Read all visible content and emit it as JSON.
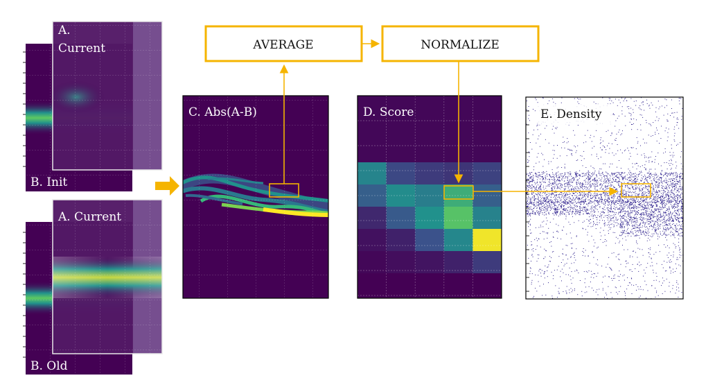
{
  "panels": {
    "a_current_top_line1": "A.",
    "a_current_top_line2": "Current",
    "b_init": "B. Init",
    "a_current_bottom": "A. Current",
    "b_old": "B. Old",
    "c_abs": "C. Abs(A-B)",
    "d_score": "D. Score",
    "e_density": "E. Density"
  },
  "process": {
    "average": "AVERAGE",
    "normalize": "NORMALIZE"
  },
  "colors": {
    "accent": "#f5b400",
    "heatmap_bg": "#440154",
    "heatmap_mid": "#21918c",
    "heatmap_high": "#fde725",
    "density_dot": "#2c1f8c"
  },
  "score_grid": {
    "rows": 8,
    "cols": 5,
    "values": [
      [
        0.02,
        0.02,
        0.02,
        0.02,
        0.02
      ],
      [
        0.02,
        0.02,
        0.02,
        0.02,
        0.02
      ],
      [
        0.02,
        0.02,
        0.02,
        0.02,
        0.02
      ],
      [
        0.45,
        0.22,
        0.18,
        0.16,
        0.2
      ],
      [
        0.3,
        0.48,
        0.42,
        0.62,
        0.3
      ],
      [
        0.12,
        0.28,
        0.5,
        0.72,
        0.44
      ],
      [
        0.05,
        0.1,
        0.25,
        0.46,
        0.98
      ],
      [
        0.02,
        0.04,
        0.06,
        0.1,
        0.18
      ]
    ]
  }
}
